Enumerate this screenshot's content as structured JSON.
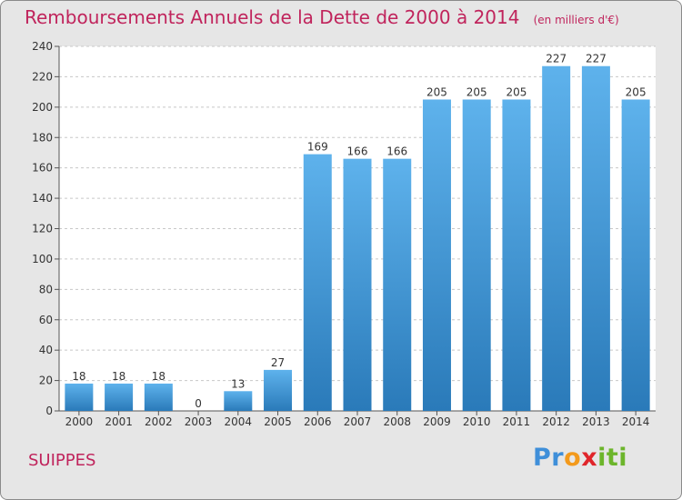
{
  "header": {
    "title": "Remboursements Annuels de la Dette de 2000 à 2014",
    "unit": "(en milliers d'€)"
  },
  "footer": {
    "place": "SUIPPES",
    "brand_letters": [
      "P",
      "r",
      "o",
      "x",
      "i",
      "t",
      "i"
    ],
    "brand_colors": [
      "#3f8fd9",
      "#3f8fd9",
      "#f39a1c",
      "#e0262b",
      "#6cb52b",
      "#6cb52b",
      "#6cb52b"
    ]
  },
  "chart_data": {
    "type": "bar",
    "title": "Remboursements Annuels de la Dette de 2000 à 2014",
    "xlabel": "",
    "ylabel": "",
    "categories": [
      "2000",
      "2001",
      "2002",
      "2003",
      "2004",
      "2005",
      "2006",
      "2007",
      "2008",
      "2009",
      "2010",
      "2011",
      "2012",
      "2013",
      "2014"
    ],
    "values": [
      18,
      18,
      18,
      0,
      13,
      27,
      169,
      166,
      166,
      205,
      205,
      205,
      227,
      227,
      205
    ],
    "ylim": [
      0,
      240
    ],
    "yticks": [
      0,
      20,
      40,
      60,
      80,
      100,
      120,
      140,
      160,
      180,
      200,
      220,
      240
    ],
    "grid": true,
    "colors": {
      "bar_top": "#5eb2ec",
      "bar_bottom": "#2a7ab9",
      "plot_bg": "#ffffff",
      "grid": "#c8c8c8",
      "text": "#333333",
      "title": "#c0245c"
    }
  }
}
